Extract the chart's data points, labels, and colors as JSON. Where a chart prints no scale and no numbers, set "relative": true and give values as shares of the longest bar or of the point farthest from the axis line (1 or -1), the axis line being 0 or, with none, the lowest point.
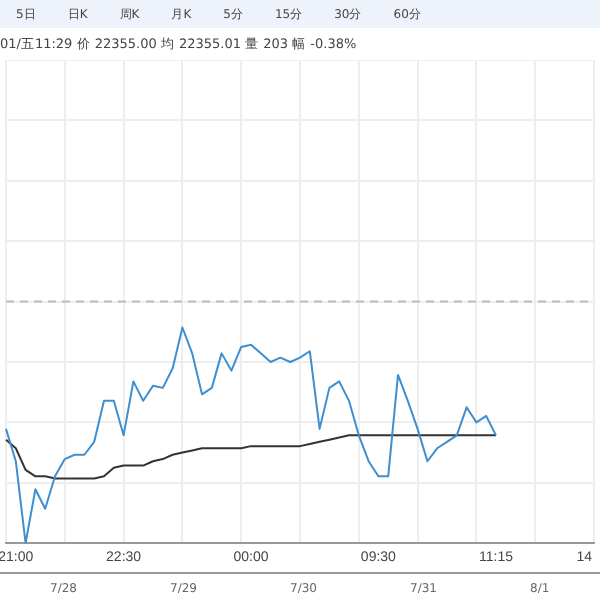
{
  "chart_data": {
    "type": "line",
    "relative": true,
    "grid": true,
    "legend": false,
    "marker": "none",
    "line_style": "solid",
    "categories": [
      null,
      "21:00",
      null,
      null,
      null,
      null,
      null,
      null,
      null,
      null,
      null,
      null,
      "22:30",
      null,
      null,
      null,
      null,
      null,
      null,
      null,
      null,
      null,
      null,
      null,
      null,
      "00:00",
      null,
      null,
      null,
      null,
      null,
      null,
      null,
      null,
      null,
      null,
      null,
      null,
      "09:30",
      null,
      null,
      null,
      null,
      null,
      null,
      null,
      null,
      null,
      null,
      null,
      "11:15",
      null,
      null,
      null,
      null,
      null,
      null,
      null,
      null,
      "14",
      null
    ],
    "series": [
      {
        "color": "#3d8fd1",
        "values": [
          0.53,
          0.38,
          0,
          0.25,
          0.16,
          0.31,
          0.39,
          0.41,
          0.41,
          0.47,
          0.66,
          0.66,
          0.5,
          0.75,
          0.66,
          0.73,
          0.72,
          0.81,
          1,
          0.88,
          0.69,
          0.72,
          0.88,
          0.8,
          0.91,
          0.92,
          0.88,
          0.84,
          0.86,
          0.84,
          0.86,
          0.89,
          0.53,
          0.72,
          0.75,
          0.66,
          0.5,
          0.38,
          0.31,
          0.31,
          0.78,
          0.66,
          0.53,
          0.38,
          0.44,
          0.47,
          0.5,
          0.63,
          0.56,
          0.59,
          0.5,
          null,
          null,
          null,
          null,
          null,
          null,
          null,
          null,
          null,
          null
        ]
      },
      {
        "color": "#333333",
        "values": [
          0.48,
          0.44,
          0.34,
          0.31,
          0.31,
          0.3,
          0.3,
          0.3,
          0.3,
          0.3,
          0.31,
          0.35,
          0.36,
          0.36,
          0.36,
          0.38,
          0.39,
          0.41,
          0.42,
          0.43,
          0.44,
          0.44,
          0.44,
          0.44,
          0.44,
          0.45,
          0.45,
          0.45,
          0.45,
          0.45,
          0.45,
          0.46,
          0.47,
          0.48,
          0.49,
          0.5,
          0.5,
          0.5,
          0.5,
          0.5,
          0.5,
          0.5,
          0.5,
          0.5,
          0.5,
          0.5,
          0.5,
          0.5,
          0.5,
          0.5,
          0.5,
          null,
          null,
          null,
          null,
          null,
          null,
          null,
          null,
          null,
          null
        ]
      }
    ],
    "ref_lines": [
      {
        "axis": "y",
        "value": 1.12,
        "label": null,
        "color": "#bbbbbb",
        "line_style": "dashed"
      }
    ],
    "annotations": [
      "5日",
      "日K",
      "周K",
      "月K",
      "5分",
      "15分",
      "30分",
      "60分",
      "01/五11:29 价 22355.00 均 22355.01 量 203 幅 -0.38%",
      "7/28",
      "7/29",
      "7/30",
      "7/31",
      "8/1"
    ]
  }
}
